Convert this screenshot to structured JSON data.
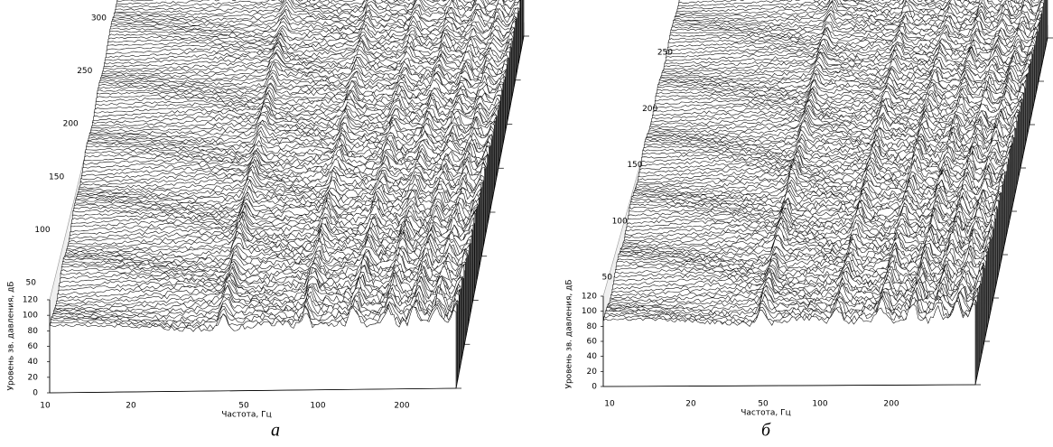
{
  "panels": [
    {
      "caption": "а",
      "y_axis_label": "Уровень зв. давления, дБ",
      "x_axis_label": "Частота, Гц",
      "level_ticks": [
        "0",
        "20",
        "40",
        "60",
        "80",
        "100",
        "120"
      ],
      "time_ticks": [
        "50",
        "100",
        "150",
        "200",
        "250",
        "300"
      ],
      "freq_ticks": [
        "10",
        "20",
        "50",
        "100",
        "200"
      ]
    },
    {
      "caption": "б",
      "y_axis_label": "Уровень зв. давления, дБ",
      "x_axis_label": "Частота, Гц",
      "level_ticks": [
        "0",
        "20",
        "40",
        "60",
        "80",
        "100",
        "120"
      ],
      "time_ticks": [
        "50",
        "100",
        "150",
        "200",
        "250"
      ],
      "freq_ticks": [
        "10",
        "20",
        "50",
        "100",
        "200"
      ]
    }
  ]
}
